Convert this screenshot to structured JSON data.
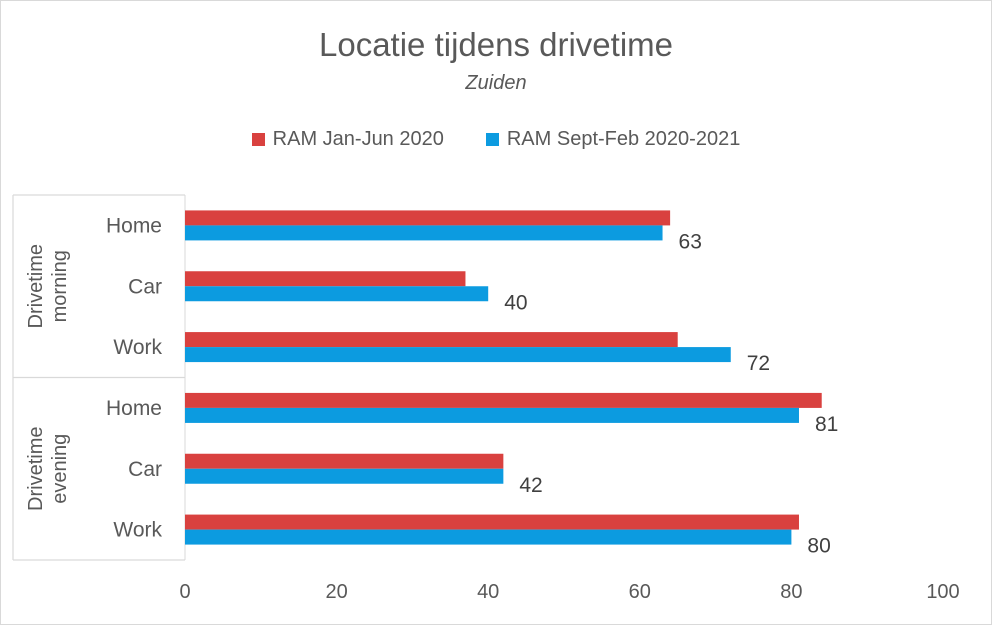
{
  "colors": {
    "series1": "#d9413f",
    "series2": "#0c9be0",
    "axis": "#d9d9d9",
    "text": "#595959",
    "label": "#404040"
  },
  "chart_data": {
    "type": "bar",
    "orientation": "horizontal",
    "title": "Locatie tijdens drivetime",
    "subtitle": "Zuiden",
    "xlim": [
      0,
      100
    ],
    "x_ticks": [
      "0",
      "20",
      "40",
      "60",
      "80",
      "100"
    ],
    "groups": [
      {
        "label": [
          "Drivetime",
          "morning"
        ],
        "categories": [
          "Home",
          "Car",
          "Work"
        ]
      },
      {
        "label": [
          "Drivetime",
          "evening"
        ],
        "categories": [
          "Home",
          "Car",
          "Work"
        ]
      }
    ],
    "series": [
      {
        "name": "RAM Jan-Jun 2020",
        "values": [
          64,
          37,
          65,
          84,
          42,
          81
        ]
      },
      {
        "name": "RAM Sept-Feb 2020-2021",
        "values": [
          63,
          40,
          72,
          81,
          42,
          80
        ]
      }
    ],
    "data_labels_series": 1,
    "legend": "top-center",
    "grid": false
  }
}
